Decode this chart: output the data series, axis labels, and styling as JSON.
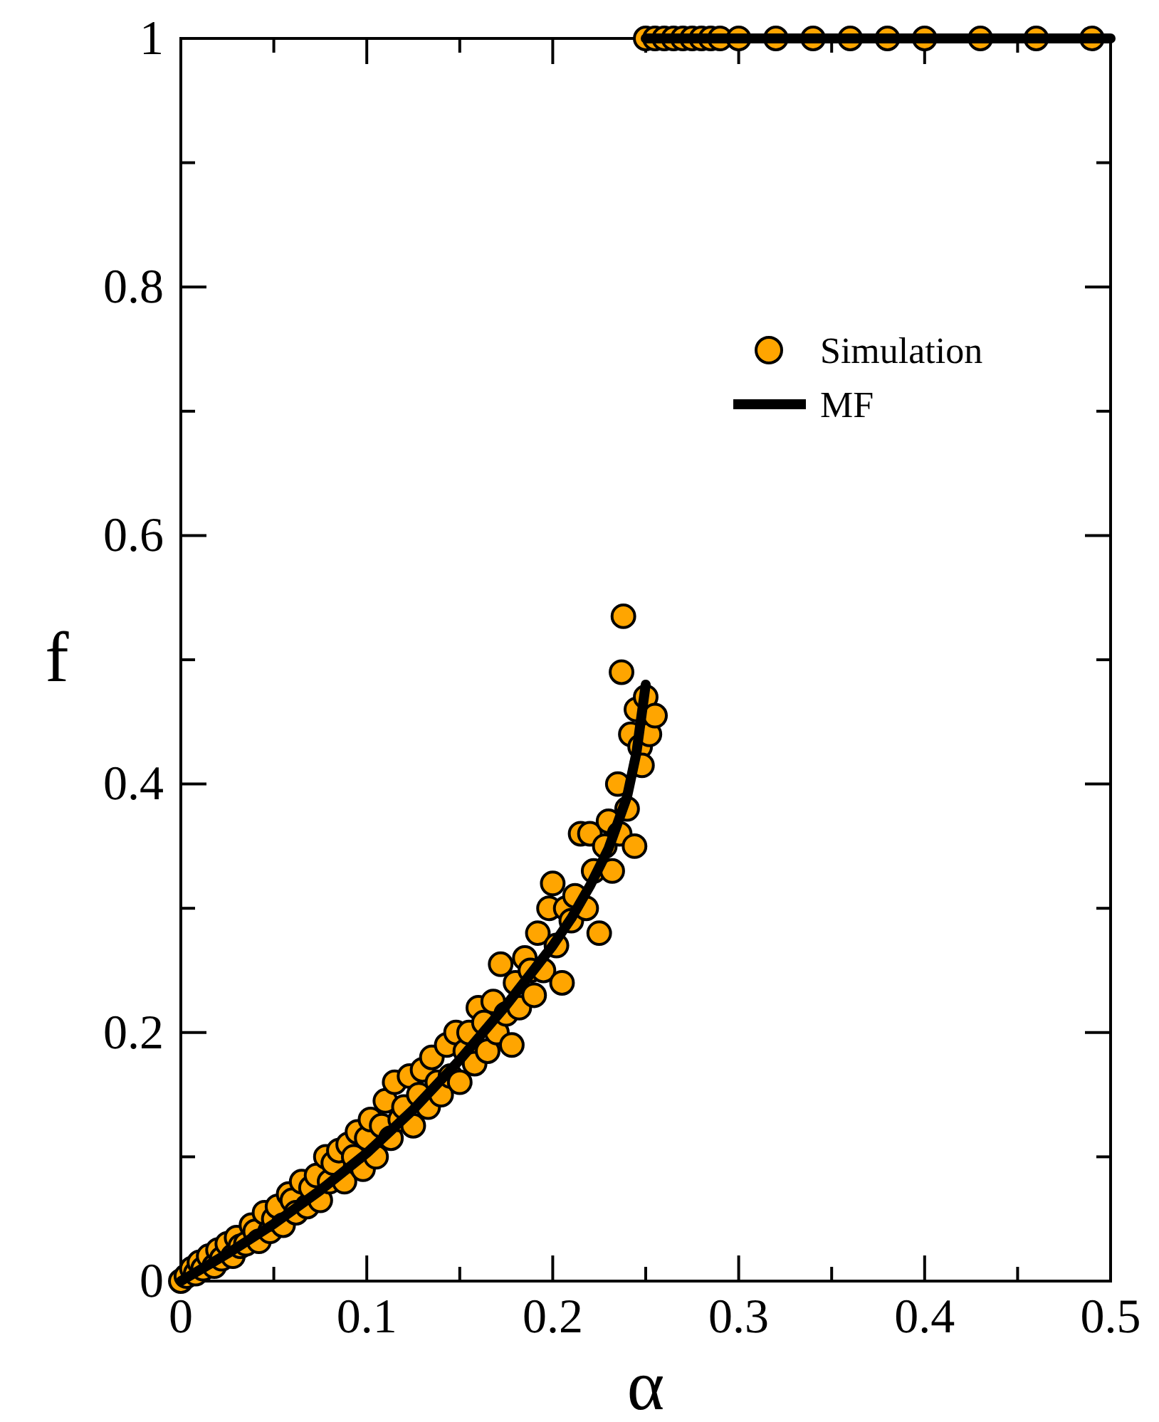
{
  "chart_data": {
    "type": "scatter",
    "xlabel": "α",
    "ylabel": "f",
    "xlim": [
      0,
      0.5
    ],
    "ylim": [
      0,
      1
    ],
    "xticks": [
      0,
      {
        "value": 0.05,
        "label": null
      },
      0.1,
      {
        "value": 0.15,
        "label": null
      },
      0.2,
      {
        "value": 0.25,
        "label": null
      },
      0.3,
      {
        "value": 0.35,
        "label": null
      },
      0.4,
      {
        "value": 0.45,
        "label": null
      },
      0.5
    ],
    "yticks": [
      0,
      {
        "value": 0.1,
        "label": null
      },
      0.2,
      {
        "value": 0.3,
        "label": null
      },
      0.4,
      {
        "value": 0.5,
        "label": null
      },
      0.6,
      {
        "value": 0.7,
        "label": null
      },
      0.8,
      {
        "value": 0.9,
        "label": null
      },
      1
    ],
    "legend": "right",
    "grid": false,
    "series": [
      {
        "name": "Simulation",
        "marker": "circle",
        "color": "#ffa500",
        "x": [
          0,
          0.003,
          0.006,
          0.008,
          0.01,
          0.012,
          0.015,
          0.018,
          0.02,
          0.022,
          0.025,
          0.028,
          0.03,
          0.032,
          0.035,
          0.038,
          0.04,
          0.042,
          0.045,
          0.048,
          0.05,
          0.052,
          0.055,
          0.058,
          0.06,
          0.062,
          0.065,
          0.068,
          0.07,
          0.073,
          0.075,
          0.078,
          0.08,
          0.082,
          0.085,
          0.088,
          0.09,
          0.093,
          0.095,
          0.098,
          0.1,
          0.102,
          0.105,
          0.108,
          0.11,
          0.113,
          0.115,
          0.118,
          0.12,
          0.123,
          0.125,
          0.128,
          0.13,
          0.133,
          0.135,
          0.138,
          0.14,
          0.143,
          0.145,
          0.148,
          0.15,
          0.153,
          0.155,
          0.158,
          0.16,
          0.163,
          0.165,
          0.168,
          0.17,
          0.172,
          0.175,
          0.178,
          0.18,
          0.182,
          0.185,
          0.188,
          0.19,
          0.192,
          0.195,
          0.198,
          0.2,
          0.202,
          0.205,
          0.207,
          0.21,
          0.212,
          0.215,
          0.218,
          0.22,
          0.222,
          0.225,
          0.228,
          0.23,
          0.232,
          0.235,
          0.236,
          0.237,
          0.238,
          0.24,
          0.242,
          0.244,
          0.245,
          0.247,
          0.248,
          0.25,
          0.252,
          0.255,
          0.25,
          0.255,
          0.26,
          0.265,
          0.27,
          0.275,
          0.28,
          0.285,
          0.29,
          0.3,
          0.32,
          0.34,
          0.36,
          0.38,
          0.4,
          0.43,
          0.46,
          0.49
        ],
        "values": [
          0,
          0.004,
          0.01,
          0.006,
          0.015,
          0.01,
          0.02,
          0.012,
          0.025,
          0.018,
          0.03,
          0.02,
          0.035,
          0.028,
          0.03,
          0.045,
          0.04,
          0.032,
          0.055,
          0.04,
          0.05,
          0.06,
          0.045,
          0.07,
          0.065,
          0.055,
          0.08,
          0.06,
          0.075,
          0.085,
          0.065,
          0.1,
          0.08,
          0.095,
          0.105,
          0.08,
          0.11,
          0.1,
          0.12,
          0.09,
          0.115,
          0.13,
          0.1,
          0.125,
          0.145,
          0.115,
          0.16,
          0.13,
          0.14,
          0.165,
          0.125,
          0.15,
          0.17,
          0.14,
          0.18,
          0.16,
          0.15,
          0.19,
          0.165,
          0.2,
          0.16,
          0.185,
          0.2,
          0.175,
          0.22,
          0.208,
          0.185,
          0.225,
          0.2,
          0.255,
          0.215,
          0.19,
          0.24,
          0.22,
          0.26,
          0.25,
          0.23,
          0.28,
          0.25,
          0.3,
          0.32,
          0.27,
          0.24,
          0.3,
          0.29,
          0.31,
          0.36,
          0.3,
          0.36,
          0.33,
          0.28,
          0.35,
          0.37,
          0.33,
          0.4,
          0.36,
          0.49,
          0.535,
          0.38,
          0.44,
          0.35,
          0.46,
          0.43,
          0.415,
          0.47,
          0.44,
          0.455,
          1,
          1,
          1,
          1,
          1,
          1,
          1,
          1,
          1,
          1,
          1,
          1,
          1,
          1,
          1,
          1,
          1,
          1
        ]
      },
      {
        "name": "MF",
        "type": "line",
        "color": "#000000",
        "x": [
          0,
          0.025,
          0.05,
          0.075,
          0.1,
          0.125,
          0.15,
          0.175,
          0.2,
          0.21,
          0.22,
          0.23,
          0.24,
          0.245,
          0.25
        ],
        "values": [
          0,
          0.022,
          0.046,
          0.073,
          0.103,
          0.138,
          0.178,
          0.222,
          0.27,
          0.292,
          0.318,
          0.348,
          0.39,
          0.425,
          0.48
        ]
      },
      {
        "type": "line",
        "color": "#000000",
        "x": [
          0.25,
          0.5
        ],
        "values": [
          1,
          1
        ]
      }
    ]
  }
}
